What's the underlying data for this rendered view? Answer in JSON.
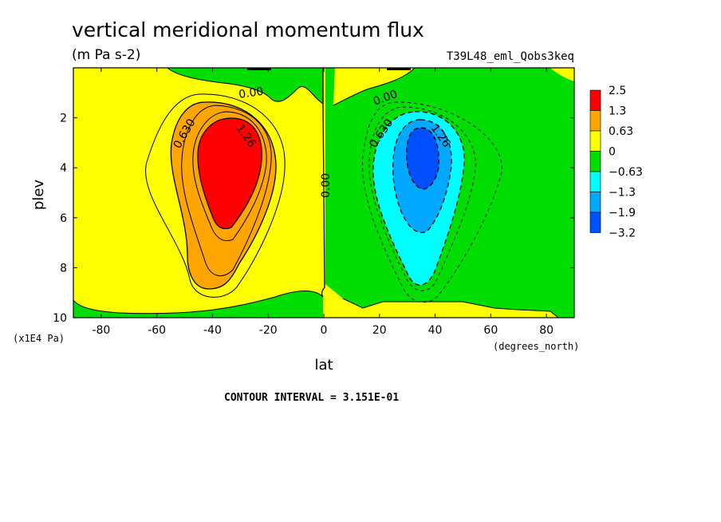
{
  "title": "vertical meridional momentum flux",
  "units": "(m Pa s-2)",
  "experiment": "T39L48_eml_Qobs3keq",
  "contour_interval": "CONTOUR INTERVAL = 3.151E-01",
  "chart_data": {
    "type": "heatmap",
    "title": "vertical meridional momentum flux",
    "xlabel": "lat",
    "x_units": "(degrees_north)",
    "ylabel": "plev",
    "y_units": "(x1E4 Pa)",
    "xlim": [
      -90,
      90
    ],
    "ylim": [
      10,
      0
    ],
    "x_ticks": [
      "-80",
      "-60",
      "-40",
      "-20",
      "0",
      "20",
      "40",
      "60",
      "80"
    ],
    "y_ticks": [
      "2",
      "4",
      "6",
      "8",
      "10"
    ],
    "colorbar": {
      "labels": [
        "2.5",
        "1.3",
        "0.63",
        "0",
        "−0.63",
        "−1.3",
        "−1.9",
        "−3.2"
      ],
      "colors": [
        "#ff0000",
        "#ffa500",
        "#ffff00",
        "#00dd00",
        "#00ffff",
        "#00a8ff",
        "#0050ff"
      ]
    },
    "contour_labels": [
      "0.00",
      "0.00",
      "0.630",
      "1.26",
      "0.00",
      "0.630",
      "1.26"
    ],
    "features": [
      {
        "name": "positive maximum",
        "lat": -35,
        "plev": 3.5,
        "value": 2.5
      },
      {
        "name": "negative minimum",
        "lat": 35,
        "plev": 3.5,
        "value": -3.2
      }
    ]
  }
}
